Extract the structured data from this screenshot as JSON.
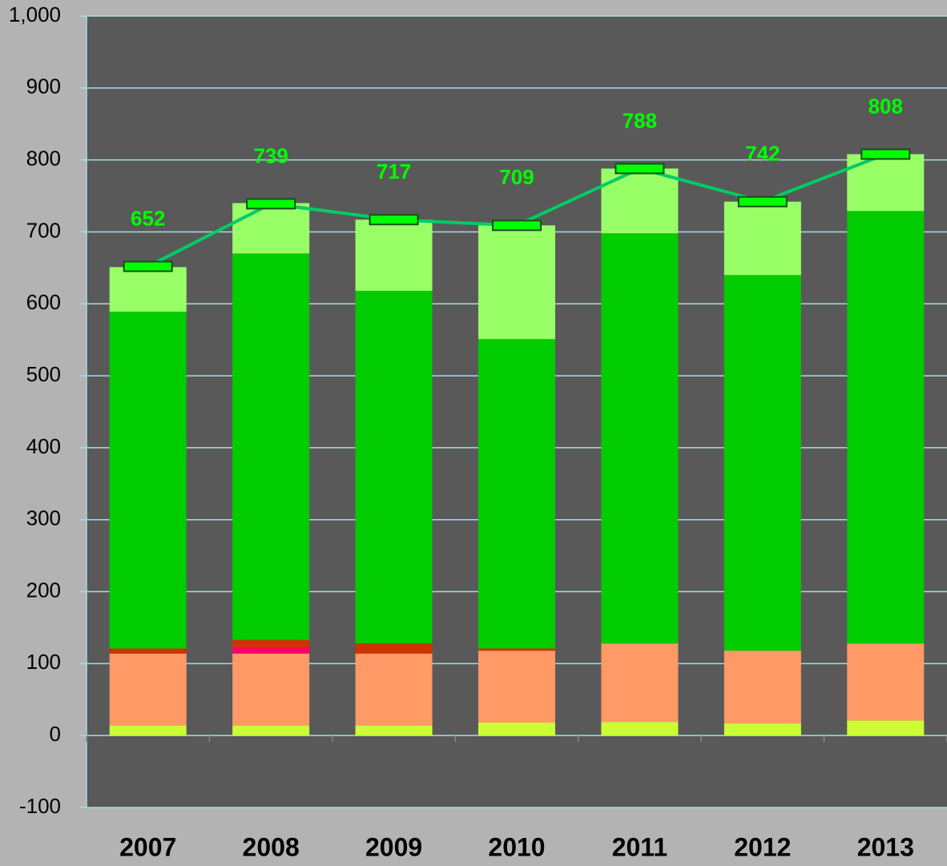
{
  "chart_data": {
    "type": "bar",
    "stacked": true,
    "categories": [
      "2007",
      "2008",
      "2009",
      "2010",
      "2011",
      "2012",
      "2013"
    ],
    "series": [
      {
        "color": "#ccff33",
        "values": [
          14,
          14,
          14,
          18,
          19,
          17,
          21
        ]
      },
      {
        "color": "#ff9966",
        "values": [
          100,
          100,
          100,
          100,
          109,
          101,
          107
        ]
      },
      {
        "color": "#ff0066",
        "values": [
          0,
          9,
          0,
          0,
          0,
          0,
          0
        ]
      },
      {
        "color": "#cc3300",
        "values": [
          7,
          10,
          14,
          3,
          0,
          0,
          0
        ]
      },
      {
        "color": "#00cc00",
        "values": [
          468,
          537,
          490,
          430,
          570,
          522,
          601
        ]
      },
      {
        "color": "#99ff66",
        "values": [
          62,
          70,
          99,
          158,
          90,
          102,
          79
        ]
      },
      {
        "type": "line",
        "color": "#00cc66",
        "values": [
          652,
          739,
          717,
          709,
          788,
          742,
          808
        ]
      }
    ],
    "ylim": [
      -100,
      1000
    ],
    "yticks": [
      -100,
      0,
      100,
      200,
      300,
      400,
      500,
      600,
      700,
      800,
      900,
      {
        "value": 1000,
        "label": "1,000"
      }
    ],
    "grid": true
  }
}
